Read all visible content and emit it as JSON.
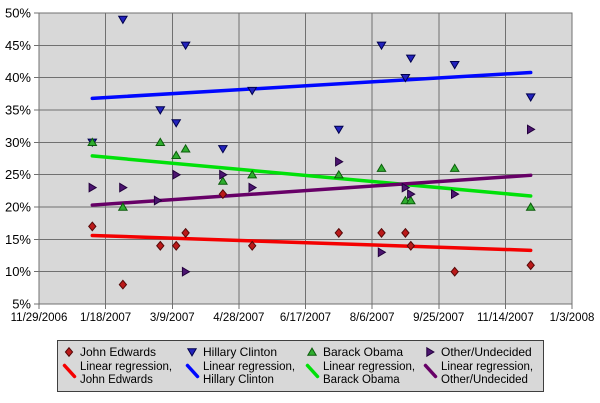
{
  "chart_data": {
    "type": "scatter",
    "description": "2008 Democratic presidential primary national polling with linear regression trend lines",
    "plot_bg": "#d8d8d8",
    "grid_color": "#707070",
    "axis_text_color": "#000000",
    "grid": true,
    "legend_position": "bottom",
    "x_axis": {
      "kind": "date",
      "tick_labels": [
        "11/29/2006",
        "1/18/2007",
        "3/9/2007",
        "4/28/2007",
        "6/17/2007",
        "8/6/2007",
        "9/25/2007",
        "11/14/2007",
        "1/3/2008"
      ],
      "tick_days": [
        0,
        50,
        100,
        150,
        200,
        250,
        300,
        350,
        400
      ],
      "range_days": [
        0,
        400
      ]
    },
    "y_axis": {
      "unit": "%",
      "min": 5,
      "max": 50,
      "step": 5,
      "tick_values": [
        5,
        10,
        15,
        20,
        25,
        30,
        35,
        40,
        45,
        50
      ],
      "tick_labels": [
        "5%",
        "10%",
        "15%",
        "20%",
        "25%",
        "30%",
        "35%",
        "40%",
        "45%",
        "50%"
      ]
    },
    "series": [
      {
        "name": "John Edwards",
        "marker": "diamond",
        "fill": "#bb1a1a",
        "edge": "#550808",
        "points_day_pct": [
          [
            40,
            17
          ],
          [
            63,
            8
          ],
          [
            91,
            14
          ],
          [
            103,
            14
          ],
          [
            110,
            16
          ],
          [
            138,
            22
          ],
          [
            160,
            14
          ],
          [
            225,
            16
          ],
          [
            257,
            16
          ],
          [
            275,
            16
          ],
          [
            279,
            14
          ],
          [
            312,
            10
          ],
          [
            369,
            11
          ]
        ]
      },
      {
        "name": "Hillary Clinton",
        "marker": "triangle-down",
        "fill": "#2323bd",
        "edge": "#00004d",
        "points_day_pct": [
          [
            40,
            30
          ],
          [
            63,
            49
          ],
          [
            91,
            35
          ],
          [
            103,
            33
          ],
          [
            110,
            45
          ],
          [
            138,
            29
          ],
          [
            160,
            38
          ],
          [
            225,
            32
          ],
          [
            257,
            45
          ],
          [
            275,
            40
          ],
          [
            279,
            43
          ],
          [
            312,
            42
          ],
          [
            369,
            37
          ]
        ]
      },
      {
        "name": "Barack Obama",
        "marker": "triangle-up",
        "fill": "#2fae2f",
        "edge": "#0b5c0b",
        "points_day_pct": [
          [
            40,
            30
          ],
          [
            63,
            20
          ],
          [
            91,
            30
          ],
          [
            103,
            28
          ],
          [
            110,
            29
          ],
          [
            138,
            24
          ],
          [
            160,
            25
          ],
          [
            225,
            25
          ],
          [
            257,
            26
          ],
          [
            275,
            21
          ],
          [
            279,
            21
          ],
          [
            312,
            26
          ],
          [
            369,
            20
          ]
        ]
      },
      {
        "name": "Other/Undecided",
        "marker": "triangle-right",
        "fill": "#4c1570",
        "edge": "#23003d",
        "points_day_pct": [
          [
            40,
            23
          ],
          [
            63,
            23
          ],
          [
            89,
            21
          ],
          [
            103,
            25
          ],
          [
            110,
            10
          ],
          [
            138,
            25
          ],
          [
            160,
            23
          ],
          [
            225,
            27
          ],
          [
            257,
            13
          ],
          [
            275,
            23
          ],
          [
            279,
            22
          ],
          [
            312,
            22
          ],
          [
            369,
            32
          ]
        ]
      }
    ],
    "regressions": [
      {
        "name": "Linear regression, John Edwards",
        "color": "#f40000",
        "x_days": [
          40,
          369
        ],
        "y_pct": [
          15.6,
          13.3
        ]
      },
      {
        "name": "Linear regression, Hillary Clinton",
        "color": "#0008ff",
        "x_days": [
          40,
          369
        ],
        "y_pct": [
          36.8,
          40.8
        ]
      },
      {
        "name": "Linear regression, Barack Obama",
        "color": "#00e109",
        "x_days": [
          40,
          369
        ],
        "y_pct": [
          27.9,
          21.7
        ]
      },
      {
        "name": "Linear regression, Other/Undecided",
        "color": "#670067",
        "x_days": [
          40,
          369
        ],
        "y_pct": [
          20.3,
          24.9
        ]
      }
    ]
  },
  "legend": {
    "markers": [
      {
        "label": "John Edwards",
        "marker": "diamond",
        "fill": "#bb1a1a",
        "edge": "#550808"
      },
      {
        "label": "Hillary Clinton",
        "marker": "triangle-down",
        "fill": "#2323bd",
        "edge": "#00004d"
      },
      {
        "label": "Barack Obama",
        "marker": "triangle-up",
        "fill": "#2fae2f",
        "edge": "#0b5c0b"
      },
      {
        "label": "Other/Undecided",
        "marker": "triangle-right",
        "fill": "#4c1570",
        "edge": "#23003d"
      }
    ],
    "regressions": [
      {
        "label_line1": "Linear regression,",
        "label_line2": "John Edwards",
        "color": "#f40000"
      },
      {
        "label_line1": "Linear regression,",
        "label_line2": "Hillary Clinton",
        "color": "#0008ff"
      },
      {
        "label_line1": "Linear regression,",
        "label_line2": "Barack Obama",
        "color": "#00e109"
      },
      {
        "label_line1": "Linear regression,",
        "label_line2": "Other/Undecided",
        "color": "#670067"
      }
    ]
  }
}
